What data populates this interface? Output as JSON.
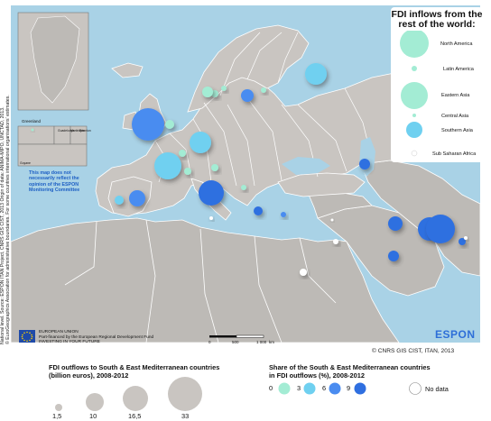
{
  "sidebar": {
    "lines": [
      "National level. Source: ESPON ITAN Project, CNRS GIS CIST, 2013 Origin of data: ANIMA-MIPO, UNCTAD, 2013.",
      "© EuroGeographics Association for administrative boundaries. For some countries international organisations' estimates."
    ]
  },
  "map": {
    "inset_labels": [
      "Greenland",
      "Guadeloupe",
      "Martinique",
      "Réunion",
      "Guyane"
    ],
    "note": "This map does not necessarily reflect the opinion of the ESPON Monitoring Committee",
    "scale": {
      "label_0": "0",
      "label_500": "500",
      "label_1000": "1 000",
      "unit": "km"
    },
    "colors": {
      "sea": "#a9d2e6",
      "land": "#c9c5c1",
      "outside": "#bdbab6",
      "border": "#ffffff"
    }
  },
  "legend_world": {
    "title": "FDI inflows from the rest of the world:",
    "items": [
      {
        "label": "North America",
        "color": "#a3ecd4"
      },
      {
        "label": "Latin America",
        "color": "#a3ecd4"
      },
      {
        "label": "Eastern Asia",
        "color": "#a3ecd4"
      },
      {
        "label": "Central Asia",
        "color": "#a3ecd4"
      },
      {
        "label": "Southern Asia",
        "color": "#6fd0f0"
      },
      {
        "label": "Sub Saharan Africa",
        "color": "#ffffff"
      }
    ]
  },
  "footer": {
    "eu_line1": "EUROPEAN UNION",
    "eu_line2": "Part-financed by the European Regional Development Fund",
    "eu_line3": "INVESTING IN YOUR FUTURE",
    "espon": "ESPON",
    "credit": "© CNRS GIS CIST, ITAN, 2013"
  },
  "legend_size": {
    "title_line1": "FDI outflows to South & East Mediterranean countries",
    "title_line2": "(billion euros), 2008-2012",
    "values": [
      "1,5",
      "10",
      "16,5",
      "33"
    ]
  },
  "legend_share": {
    "title_line1": "Share of the South & East Mediterranean countries",
    "title_line2": "in FDI outflows (%), 2008-2012",
    "breaks": [
      "0",
      "3",
      "6",
      "9"
    ],
    "colors": [
      "#a3ecd4",
      "#6fd0f0",
      "#4a8cf0",
      "#2f6fe0"
    ],
    "no_data": "No data"
  },
  "flows": [
    {
      "id": "greenland-dot",
      "share_class": 1
    },
    {
      "id": "iceland",
      "share_class": 0
    },
    {
      "id": "norway",
      "share_class": 1
    },
    {
      "id": "sweden-small",
      "share_class": 1
    },
    {
      "id": "finland",
      "share_class": 0
    },
    {
      "id": "russia",
      "share_class": 2
    },
    {
      "id": "baltic",
      "share_class": 3
    },
    {
      "id": "united-kingdom",
      "share_class": 3
    },
    {
      "id": "netherlands",
      "share_class": 1
    },
    {
      "id": "germany",
      "share_class": 2
    },
    {
      "id": "belgium",
      "share_class": 1
    },
    {
      "id": "france",
      "share_class": 2
    },
    {
      "id": "switzerland",
      "share_class": 1
    },
    {
      "id": "austria",
      "share_class": 1
    },
    {
      "id": "spain",
      "share_class": 3
    },
    {
      "id": "portugal",
      "share_class": 2
    },
    {
      "id": "italy",
      "share_class": 4
    },
    {
      "id": "greece",
      "share_class": 4
    },
    {
      "id": "cyprus",
      "share_class": 3
    },
    {
      "id": "caucasus",
      "share_class": 4
    },
    {
      "id": "iran",
      "share_class": 4
    },
    {
      "id": "pakistan",
      "share_class": 4
    },
    {
      "id": "india-big",
      "share_class": 4
    },
    {
      "id": "india-small",
      "share_class": 4
    },
    {
      "id": "arabia",
      "share_class": 4
    },
    {
      "id": "malta",
      "share_class": 5
    },
    {
      "id": "libya",
      "share_class": 5
    },
    {
      "id": "sahara",
      "share_class": 5
    },
    {
      "id": "gulf-small",
      "share_class": 5
    },
    {
      "id": "east-dot",
      "share_class": 5
    },
    {
      "id": "balkan-small",
      "share_class": 1
    }
  ]
}
